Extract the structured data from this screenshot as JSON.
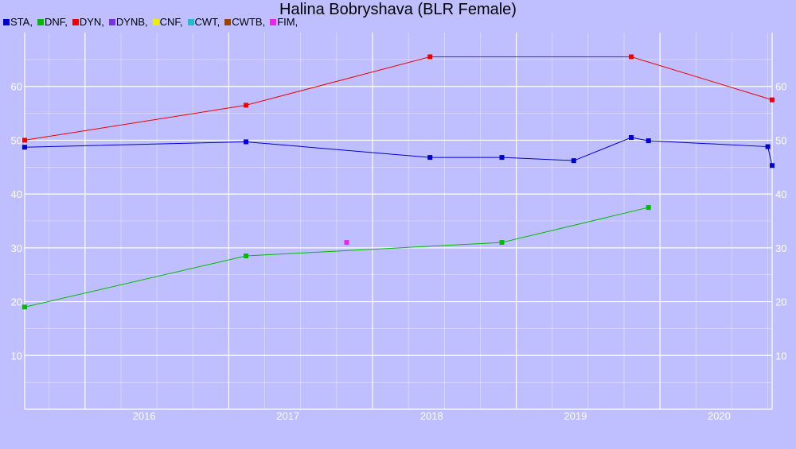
{
  "chart_data": {
    "type": "line",
    "title": "Halina Bobryshava (BLR Female)",
    "legend": [
      {
        "label": "STA,",
        "color": "#0000cc"
      },
      {
        "label": "DNF,",
        "color": "#00bb00"
      },
      {
        "label": "DYN,",
        "color": "#ee0000"
      },
      {
        "label": "DYNB,",
        "color": "#7733dd"
      },
      {
        "label": "CNF,",
        "color": "#eeee00"
      },
      {
        "label": "CWT,",
        "color": "#22bbcc"
      },
      {
        "label": "CWTB,",
        "color": "#994400"
      },
      {
        "label": "FIM,",
        "color": "#ee22ee"
      }
    ],
    "legend_position": "top-left",
    "grid": true,
    "xlim": [
      2015.58,
      2020.78
    ],
    "ylim": [
      0,
      70
    ],
    "x_ticks": [
      2016,
      2017,
      2018,
      2019,
      2020
    ],
    "y_ticks": [
      10,
      20,
      30,
      40,
      50,
      60
    ],
    "series": [
      {
        "name": "DYN",
        "color": "#ee0000",
        "points": [
          [
            2015.58,
            50.0
          ],
          [
            2017.12,
            56.5
          ],
          [
            2018.4,
            65.5
          ],
          [
            2019.8,
            65.5
          ],
          [
            2020.78,
            57.5
          ]
        ]
      },
      {
        "name": "STA",
        "color": "#0000cc",
        "points": [
          [
            2015.58,
            48.7
          ],
          [
            2017.12,
            49.7
          ],
          [
            2018.4,
            46.8
          ],
          [
            2018.9,
            46.8
          ],
          [
            2019.4,
            46.2
          ],
          [
            2019.8,
            50.5
          ],
          [
            2019.92,
            49.9
          ],
          [
            2020.75,
            48.8
          ],
          [
            2020.78,
            45.3
          ]
        ]
      },
      {
        "name": "DNF",
        "color": "#00bb00",
        "points": [
          [
            2015.58,
            19.0
          ],
          [
            2017.12,
            28.5
          ],
          [
            2018.9,
            31.0
          ],
          [
            2019.92,
            37.5
          ]
        ]
      },
      {
        "name": "FIM",
        "color": "#ee22ee",
        "points": [
          [
            2017.82,
            31.0
          ]
        ]
      }
    ]
  }
}
